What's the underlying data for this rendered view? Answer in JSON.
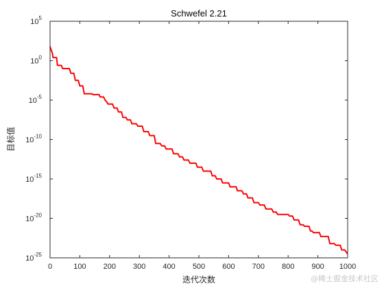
{
  "chart_data": {
    "type": "line",
    "title": "Schwefel 2.21",
    "xlabel": "迭代次数",
    "ylabel": "目标值",
    "xlim": [
      0,
      1000
    ],
    "ylim_log10": [
      -25,
      5
    ],
    "yscale": "log",
    "grid": false,
    "x_ticks": [
      0,
      100,
      200,
      300,
      400,
      500,
      600,
      700,
      800,
      900,
      1000
    ],
    "y_tick_exponents": [
      -25,
      -20,
      -15,
      -10,
      -5,
      0,
      5
    ],
    "y_tick_base": "10",
    "line_color": "#ff0000",
    "series": [
      {
        "x": [
          0,
          8,
          10,
          22,
          25,
          38,
          42,
          65,
          70,
          80,
          85,
          95,
          100,
          110,
          115,
          140,
          145,
          165,
          168,
          180,
          185,
          190,
          195,
          210,
          215,
          225,
          230,
          240,
          245,
          255,
          260,
          270,
          275,
          290,
          295,
          310,
          315,
          330,
          335,
          350,
          355,
          370,
          375,
          385,
          390,
          410,
          415,
          430,
          435,
          445,
          450,
          465,
          470,
          490,
          495,
          510,
          515,
          540,
          545,
          555,
          560,
          575,
          580,
          600,
          605,
          625,
          630,
          645,
          650,
          660,
          665,
          680,
          685,
          700,
          705,
          720,
          725,
          745,
          750,
          760,
          765,
          800,
          805,
          815,
          820,
          835,
          840,
          850,
          855,
          870,
          875,
          880,
          885,
          905,
          910,
          935,
          940,
          955,
          960,
          975,
          980,
          990,
          1000
        ],
        "y_log10": [
          1.8,
          0.9,
          0.4,
          0.4,
          -0.6,
          -0.6,
          -1.0,
          -1.0,
          -1.6,
          -1.6,
          -2.5,
          -2.5,
          -3.2,
          -3.2,
          -4.2,
          -4.2,
          -4.3,
          -4.3,
          -4.6,
          -4.6,
          -5.0,
          -5.2,
          -5.5,
          -5.5,
          -6.0,
          -6.0,
          -6.5,
          -6.5,
          -7.2,
          -7.2,
          -7.5,
          -7.5,
          -8.0,
          -8.0,
          -8.3,
          -8.3,
          -9.0,
          -9.0,
          -9.5,
          -9.5,
          -10.5,
          -10.5,
          -10.8,
          -10.8,
          -11.2,
          -11.2,
          -11.8,
          -11.8,
          -12.2,
          -12.2,
          -12.6,
          -12.6,
          -13.0,
          -13.0,
          -13.5,
          -13.5,
          -14.0,
          -14.0,
          -14.6,
          -14.6,
          -15.0,
          -15.0,
          -15.5,
          -15.5,
          -16.0,
          -16.0,
          -16.5,
          -16.5,
          -16.9,
          -16.9,
          -17.4,
          -17.4,
          -18.0,
          -18.0,
          -18.3,
          -18.3,
          -18.8,
          -18.8,
          -19.2,
          -19.2,
          -19.5,
          -19.5,
          -19.7,
          -19.7,
          -20.2,
          -20.2,
          -20.8,
          -20.8,
          -21.0,
          -21.0,
          -21.6,
          -21.6,
          -21.8,
          -21.8,
          -22.3,
          -22.3,
          -23.2,
          -23.2,
          -23.4,
          -23.4,
          -24.0,
          -24.0,
          -24.5
        ]
      }
    ]
  },
  "watermark": "@稀土掘金技术社区"
}
